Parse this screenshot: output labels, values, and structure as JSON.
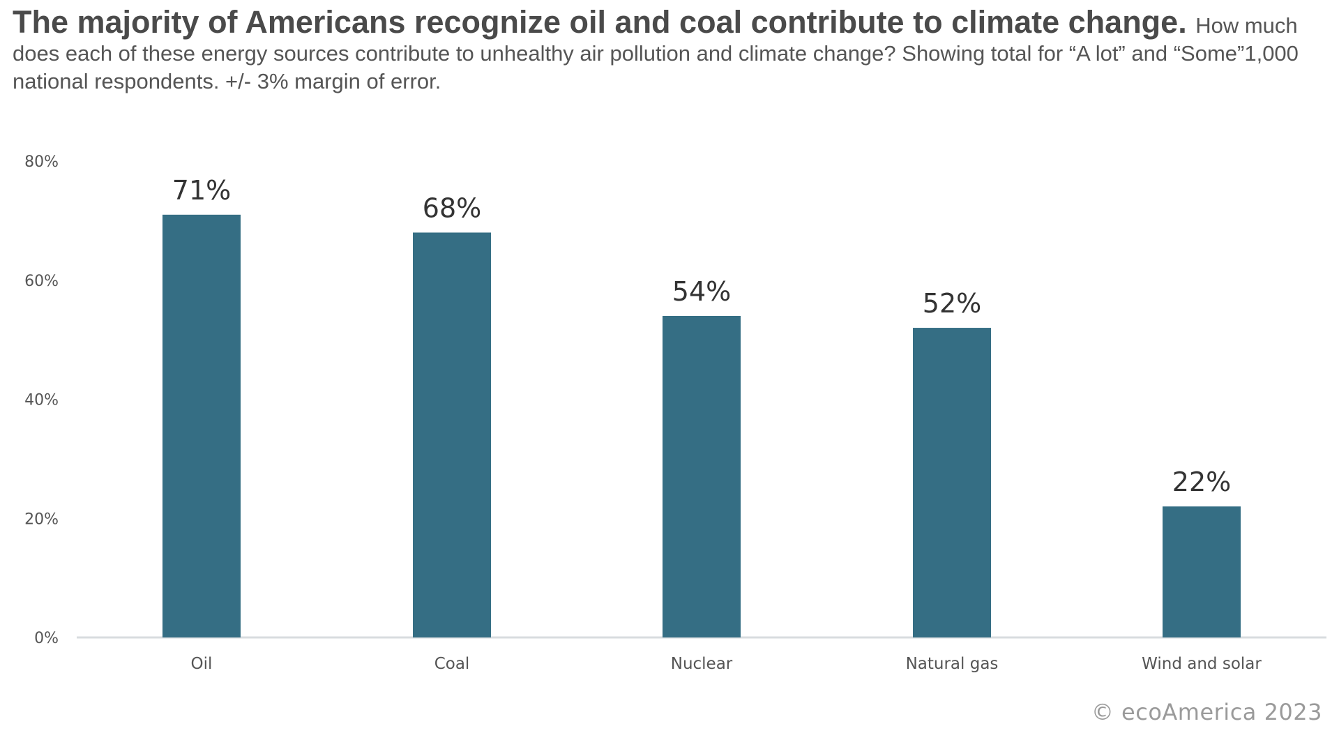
{
  "heading": {
    "title": "The majority of Americans recognize oil and coal contribute to climate change.",
    "subtitle": "How much does each of these energy sources contribute to unhealthy air pollution and climate change? Showing total for “A lot” and “Some”1,000 national respondents. +/- 3% margin of error."
  },
  "credit": "© ecoAmerica 2023",
  "colors": {
    "bar": "#356e84",
    "axis": "#d8dcdf",
    "tick_text": "#555555",
    "label_text": "#333333"
  },
  "chart_data": {
    "type": "bar",
    "title": "The majority of Americans recognize oil and coal contribute to climate change.",
    "categories": [
      "Oil",
      "Coal",
      "Nuclear",
      "Natural gas",
      "Wind and solar"
    ],
    "values": [
      71,
      68,
      54,
      52,
      22
    ],
    "data_labels": [
      "71%",
      "68%",
      "54%",
      "52%",
      "22%"
    ],
    "ylim": [
      0,
      80
    ],
    "yticks": [
      0,
      20,
      40,
      60,
      80
    ],
    "ytick_labels": [
      "0%",
      "20%",
      "40%",
      "60%",
      "80%"
    ],
    "xlabel": "",
    "ylabel": "",
    "grid": false,
    "legend": "none"
  }
}
